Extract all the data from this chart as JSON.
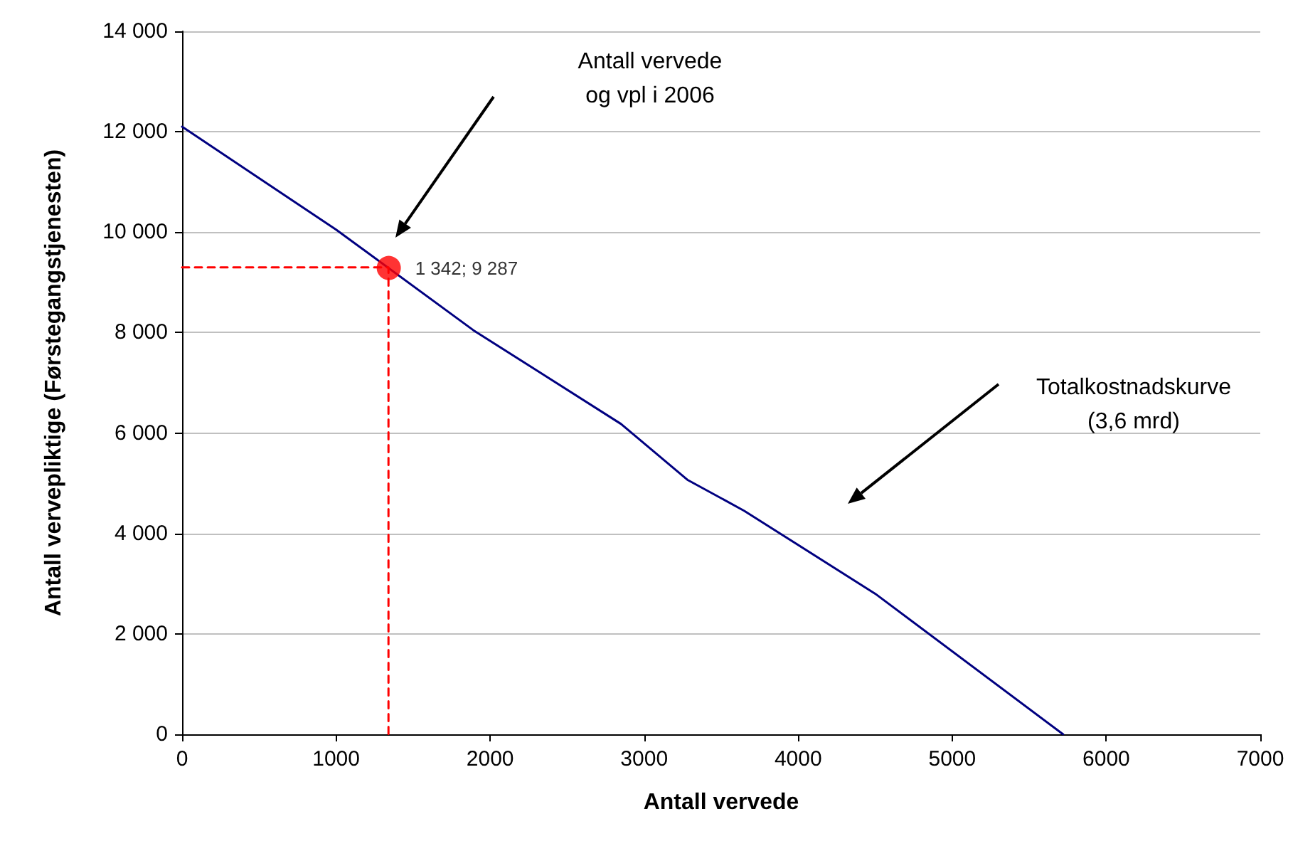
{
  "chart_data": {
    "type": "line",
    "xlabel": "Antall vervede",
    "ylabel": "Antall vervepliktige (Førstegangstjenesten)",
    "xlim": [
      0,
      7000
    ],
    "xticks": [
      0,
      1000,
      2000,
      3000,
      4000,
      5000,
      6000,
      7000
    ],
    "ylim": [
      0,
      14000
    ],
    "yticks": [
      {
        "value": 0,
        "label": "0"
      },
      {
        "value": 2000,
        "label": "2 000"
      },
      {
        "value": 4000,
        "label": "4 000"
      },
      {
        "value": 6000,
        "label": "6 000"
      },
      {
        "value": 8000,
        "label": "8 000"
      },
      {
        "value": 10000,
        "label": "10 000"
      },
      {
        "value": 12000,
        "label": "12 000"
      },
      {
        "value": 14000,
        "label": "14 000"
      }
    ],
    "grid": "y",
    "marker": "none",
    "line_style": "solid",
    "series": [
      {
        "color": "#000080",
        "x": [
          0,
          1000,
          1890,
          2850,
          3280,
          3650,
          4500,
          5720
        ],
        "values": [
          12100,
          10050,
          8050,
          6180,
          5070,
          4450,
          2800,
          0
        ]
      },
      {
        "line_style": "dashed",
        "color": "#ff0000",
        "x": [
          0,
          1340,
          1340
        ],
        "values": [
          9300,
          9300,
          0
        ]
      },
      {
        "type": "scatter",
        "marker": "circle",
        "color": "#ff0000",
        "x": [
          1342
        ],
        "values": [
          9287
        ],
        "value_labels": [
          "1 342; 9 287"
        ]
      }
    ],
    "annotations": [
      "Antall vervede\nog vpl i 2006",
      "Totalkostnadskurve\n(3,6 mrd)"
    ]
  }
}
